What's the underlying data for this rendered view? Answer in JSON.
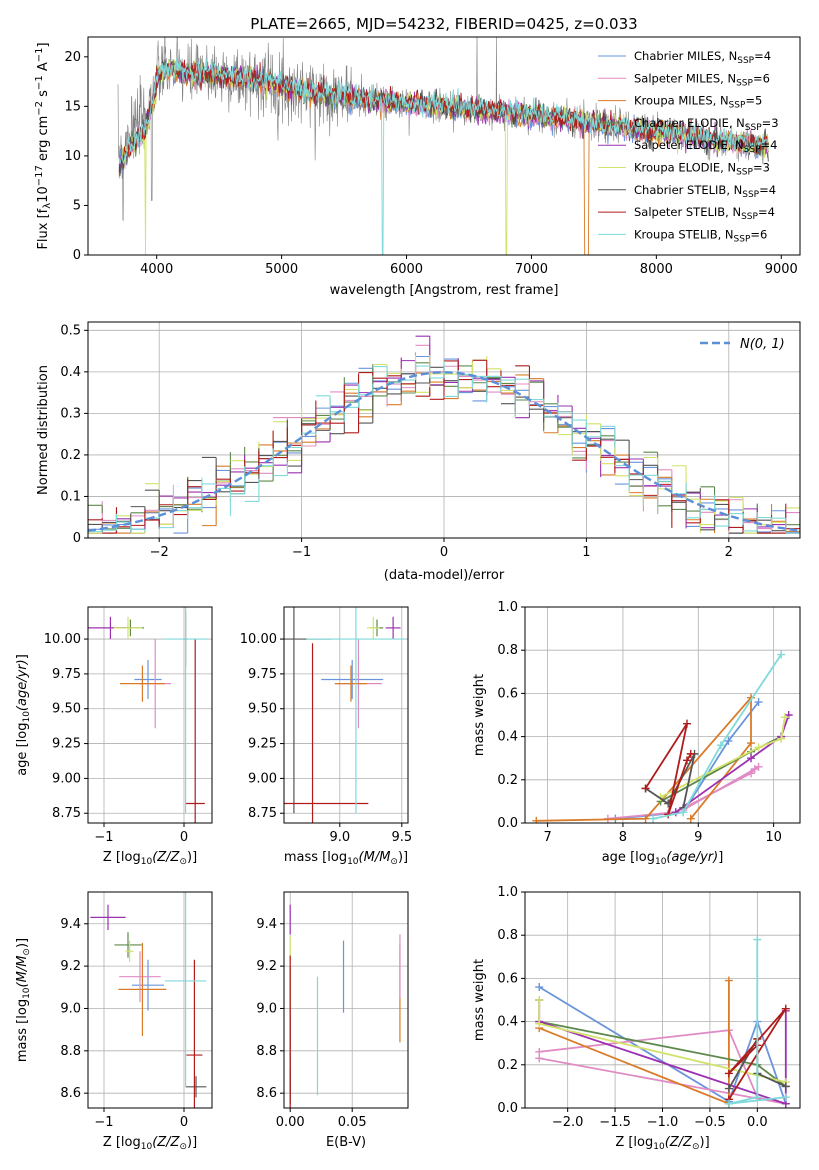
{
  "colors": {
    "Chabrier MILES": "#6a95dc",
    "Salpeter MILES": "#e08cc4",
    "Kroupa MILES": "#d97b28",
    "Chabrier ELODIE": "#5d8a4c",
    "Salpeter ELODIE": "#9b31b0",
    "Kroupa ELODIE": "#d2e26a",
    "Chabrier STELIB": "#555555",
    "Salpeter STELIB": "#b01c1c",
    "Kroupa STELIB": "#7fdad9",
    "normal": "#5b8fd8",
    "data": "#808080"
  },
  "chart_data": [
    {
      "type": "line",
      "title": "PLATE=2665, MJD=54232, FIBERID=0425, z=0.033",
      "xlabel": "wavelength [Angstrom, rest frame]",
      "ylabel": "Flux [f_λ 10^-17 erg cm^-2 s^-1 A^-1]",
      "xlim": [
        3450,
        9150
      ],
      "ylim": [
        0,
        22
      ],
      "xticks": [
        4000,
        5000,
        6000,
        7000,
        8000,
        9000
      ],
      "yticks": [
        0,
        5,
        10,
        15,
        20
      ],
      "legend_position": "top-right",
      "legend": [
        {
          "label": "Chabrier MILES, N",
          "sub": "SSP",
          "eq": "=4",
          "series": "Chabrier MILES"
        },
        {
          "label": "Salpeter MILES, N",
          "sub": "SSP",
          "eq": "=6",
          "series": "Salpeter MILES"
        },
        {
          "label": "Kroupa MILES, N",
          "sub": "SSP",
          "eq": "=5",
          "series": "Kroupa MILES"
        },
        {
          "label": "Chabrier ELODIE, N",
          "sub": "SSP",
          "eq": "=3",
          "series": "Chabrier ELODIE"
        },
        {
          "label": "Salpeter ELODIE, N",
          "sub": "SSP",
          "eq": "=4",
          "series": "Salpeter ELODIE"
        },
        {
          "label": "Kroupa ELODIE, N",
          "sub": "SSP",
          "eq": "=3",
          "series": "Kroupa ELODIE"
        },
        {
          "label": "Chabrier STELIB, N",
          "sub": "SSP",
          "eq": "=4",
          "series": "Chabrier STELIB"
        },
        {
          "label": "Salpeter STELIB, N",
          "sub": "SSP",
          "eq": "=4",
          "series": "Salpeter STELIB"
        },
        {
          "label": "Kroupa STELIB, N",
          "sub": "SSP",
          "eq": "=6",
          "series": "Kroupa STELIB"
        }
      ],
      "continuum": [
        [
          3700,
          10.5
        ],
        [
          3800,
          12.5
        ],
        [
          3900,
          14
        ],
        [
          4000,
          18
        ],
        [
          4100,
          18.8
        ],
        [
          4200,
          18.5
        ],
        [
          4300,
          18
        ],
        [
          4400,
          18.3
        ],
        [
          4500,
          18.1
        ],
        [
          4700,
          17.8
        ],
        [
          4900,
          17.5
        ],
        [
          5000,
          17
        ],
        [
          5200,
          16.5
        ],
        [
          5500,
          16
        ],
        [
          5800,
          15.5
        ],
        [
          6000,
          15.3
        ],
        [
          6300,
          15
        ],
        [
          6600,
          14.6
        ],
        [
          6900,
          14.3
        ],
        [
          7200,
          13.8
        ],
        [
          7500,
          13.3
        ],
        [
          7800,
          12.8
        ],
        [
          8000,
          12.5
        ],
        [
          8300,
          12
        ],
        [
          8500,
          11.5
        ],
        [
          8700,
          11.2
        ],
        [
          8900,
          11
        ]
      ]
    },
    {
      "type": "histogram",
      "xlabel": "(data-model)/error",
      "ylabel": "Normed distribution",
      "xlim": [
        -2.5,
        2.5
      ],
      "ylim": [
        0,
        0.52
      ],
      "xticks": [
        -2,
        -1,
        0,
        1,
        2
      ],
      "yticks": [
        0.0,
        0.1,
        0.2,
        0.3,
        0.4,
        0.5
      ],
      "legend_position": "top-right",
      "legend_label": "N(0, 1)",
      "bin_width": 0.1
    },
    {
      "type": "scatter",
      "xlabel": "Z [log10(Z/Z_sun)]",
      "ylabel": "age [log10(age/yr)]",
      "xlim": [
        -1.2,
        0.35
      ],
      "ylim": [
        8.68,
        10.23
      ],
      "xticks": [
        "-1",
        "0"
      ],
      "xtick_values": [
        -1,
        0
      ],
      "yticks": [
        "8.75",
        "9.00",
        "9.25",
        "9.50",
        "9.75",
        "10.00"
      ],
      "points": [
        {
          "series": "Chabrier MILES",
          "x": -0.45,
          "y": 9.71,
          "xerr": 0.17,
          "yerr": 0.14
        },
        {
          "series": "Salpeter MILES",
          "x": -0.36,
          "y": 9.68,
          "xerr": 0.2,
          "yerr": 0.32
        },
        {
          "series": "Kroupa MILES",
          "x": -0.52,
          "y": 9.68,
          "xerr": 0.28,
          "yerr": 0.13
        },
        {
          "series": "Chabrier ELODIE",
          "x": -0.67,
          "y": 10.08,
          "xerr": 0.17,
          "yerr": 0.06
        },
        {
          "series": "Salpeter ELODIE",
          "x": -0.92,
          "y": 10.08,
          "xerr": 0.28,
          "yerr": 0.08
        },
        {
          "series": "Kroupa ELODIE",
          "x": -0.7,
          "y": 10.08,
          "xerr": 0.18,
          "yerr": 0.08
        },
        {
          "series": "Chabrier STELIB",
          "x": 0.02,
          "y": 10.0,
          "xerr": 0.02,
          "yerr": 0.2
        },
        {
          "series": "Salpeter STELIB",
          "x": 0.14,
          "y": 8.82,
          "xerr": 0.12,
          "yerr": 1.18
        },
        {
          "series": "Kroupa STELIB",
          "x": 0.02,
          "y": 10.0,
          "xerr": 0.28,
          "yerr": 1.25
        }
      ]
    },
    {
      "type": "scatter",
      "xlabel": "mass [log10(M/M_sun)]",
      "ylabel": "",
      "xlim": [
        8.55,
        9.55
      ],
      "ylim": [
        8.68,
        10.23
      ],
      "xticks": [
        "9.0",
        "9.5"
      ],
      "xtick_values": [
        9.0,
        9.5
      ],
      "yticks": [
        "8.75",
        "9.00",
        "9.25",
        "9.50",
        "9.75",
        "10.00"
      ],
      "points": [
        {
          "series": "Chabrier MILES",
          "x": 9.1,
          "y": 9.71,
          "xerr": 0.25,
          "yerr": 0.14
        },
        {
          "series": "Salpeter MILES",
          "x": 9.15,
          "y": 9.68,
          "xerr": 0.19,
          "yerr": 0.32
        },
        {
          "series": "Kroupa MILES",
          "x": 9.09,
          "y": 9.68,
          "xerr": 0.13,
          "yerr": 0.13
        },
        {
          "series": "Chabrier ELODIE",
          "x": 9.3,
          "y": 10.08,
          "xerr": 0.05,
          "yerr": 0.06
        },
        {
          "series": "Salpeter ELODIE",
          "x": 9.43,
          "y": 10.08,
          "xerr": 0.06,
          "yerr": 0.08
        },
        {
          "series": "Kroupa ELODIE",
          "x": 9.27,
          "y": 10.08,
          "xerr": 0.05,
          "yerr": 0.08
        },
        {
          "series": "Chabrier STELIB",
          "x": 8.63,
          "y": 10.0,
          "xerr": 0.3,
          "yerr": 1.25
        },
        {
          "series": "Salpeter STELIB",
          "x": 8.78,
          "y": 8.82,
          "xerr": 0.45,
          "yerr": 1.15
        },
        {
          "series": "Kroupa STELIB",
          "x": 9.13,
          "y": 10.0,
          "xerr": 0.4,
          "yerr": 1.25
        }
      ]
    },
    {
      "type": "line",
      "xlabel": "age [log10(age/yr)]",
      "ylabel": "mass weight",
      "xlim": [
        6.7,
        10.35
      ],
      "ylim": [
        0,
        1.0
      ],
      "xticks": [
        "7",
        "8",
        "9",
        "10"
      ],
      "xtick_values": [
        7,
        8,
        9,
        10
      ],
      "yticks": [
        "0.0",
        "0.2",
        "0.4",
        "0.6",
        "0.8",
        "1.0"
      ],
      "series": [
        {
          "name": "Chabrier MILES",
          "points": [
            [
              7.9,
              0.02
            ],
            [
              8.8,
              0.05
            ],
            [
              9.4,
              0.38
            ],
            [
              9.8,
              0.56
            ]
          ]
        },
        {
          "name": "Salpeter MILES",
          "points": [
            [
              7.8,
              0.02
            ],
            [
              8.7,
              0.05
            ],
            [
              9.7,
              0.23
            ],
            [
              9.75,
              0.25
            ],
            [
              9.8,
              0.26
            ],
            [
              8.8,
              0.06
            ]
          ]
        },
        {
          "name": "Kroupa MILES",
          "points": [
            [
              6.85,
              0.01
            ],
            [
              8.3,
              0.02
            ],
            [
              9.7,
              0.58
            ],
            [
              9.7,
              0.37
            ],
            [
              8.9,
              0.02
            ]
          ]
        },
        {
          "name": "Chabrier ELODIE",
          "points": [
            [
              8.5,
              0.1
            ],
            [
              9.7,
              0.33
            ],
            [
              10.1,
              0.4
            ]
          ]
        },
        {
          "name": "Salpeter ELODIE",
          "points": [
            [
              8.7,
              0.05
            ],
            [
              9.7,
              0.3
            ],
            [
              10.1,
              0.4
            ],
            [
              10.2,
              0.5
            ]
          ]
        },
        {
          "name": "Kroupa ELODIE",
          "points": [
            [
              8.5,
              0.12
            ],
            [
              9.8,
              0.35
            ],
            [
              10.1,
              0.39
            ],
            [
              10.15,
              0.49
            ]
          ]
        },
        {
          "name": "Chabrier STELIB",
          "points": [
            [
              8.3,
              0.16
            ],
            [
              8.6,
              0.09
            ],
            [
              8.95,
              0.32
            ],
            [
              8.8,
              0.07
            ]
          ]
        },
        {
          "name": "Salpeter STELIB",
          "points": [
            [
              8.3,
              0.16
            ],
            [
              8.85,
              0.46
            ],
            [
              8.6,
              0.04
            ],
            [
              8.85,
              0.29
            ],
            [
              8.9,
              0.32
            ]
          ]
        },
        {
          "name": "Kroupa STELIB",
          "points": [
            [
              8.4,
              0.02
            ],
            [
              8.8,
              0.05
            ],
            [
              9.3,
              0.36
            ],
            [
              10.1,
              0.78
            ]
          ]
        }
      ]
    },
    {
      "type": "scatter",
      "xlabel": "Z [log10(Z/Z_sun)]",
      "ylabel": "mass [log10(M/M_sun)]",
      "xlim": [
        -1.2,
        0.35
      ],
      "ylim": [
        8.53,
        9.55
      ],
      "xticks": [
        "-1",
        "0"
      ],
      "xtick_values": [
        -1,
        0
      ],
      "yticks": [
        "8.6",
        "8.8",
        "9.0",
        "9.2",
        "9.4"
      ],
      "points": [
        {
          "series": "Chabrier MILES",
          "x": -0.45,
          "y": 9.11,
          "xerr": 0.2,
          "yerr": 0.12
        },
        {
          "series": "Salpeter MILES",
          "x": -0.55,
          "y": 9.15,
          "xerr": 0.26,
          "yerr": 0.12
        },
        {
          "series": "Kroupa MILES",
          "x": -0.52,
          "y": 9.09,
          "xerr": 0.3,
          "yerr": 0.22
        },
        {
          "series": "Chabrier ELODIE",
          "x": -0.7,
          "y": 9.3,
          "xerr": 0.17,
          "yerr": 0.06
        },
        {
          "series": "Salpeter ELODIE",
          "x": -0.95,
          "y": 9.43,
          "xerr": 0.22,
          "yerr": 0.06
        },
        {
          "series": "Kroupa ELODIE",
          "x": -0.68,
          "y": 9.27,
          "xerr": 0.05,
          "yerr": 0.05
        },
        {
          "series": "Chabrier STELIB",
          "x": 0.15,
          "y": 8.63,
          "xerr": 0.13,
          "yerr": 0.05
        },
        {
          "series": "Salpeter STELIB",
          "x": 0.13,
          "y": 8.78,
          "xerr": 0.1,
          "yerr": 0.45
        },
        {
          "series": "Kroupa STELIB",
          "x": 0.02,
          "y": 9.13,
          "xerr": 0.26,
          "yerr": 0.5
        }
      ]
    },
    {
      "type": "scatter",
      "xlabel": "E(B-V)",
      "ylabel": "",
      "xlim": [
        -0.005,
        0.095
      ],
      "ylim": [
        8.53,
        9.55
      ],
      "xticks": [
        "0.00",
        "0.05"
      ],
      "xtick_values": [
        0.0,
        0.05
      ],
      "yticks": [
        "8.6",
        "8.8",
        "9.0",
        "9.2",
        "9.4"
      ],
      "points": [
        {
          "series": "Chabrier MILES",
          "x": 0.043,
          "y": 9.15,
          "yerr": 0.17
        },
        {
          "series": "Salpeter MILES",
          "x": 0.0,
          "y": 8.8,
          "yerr": 0.2
        },
        {
          "series": "Kroupa MILES",
          "x": 0.0885,
          "y": 9.07,
          "yerr": 0.23
        },
        {
          "series": "Chabrier ELODIE",
          "x": 0.0,
          "y": 8.9,
          "yerr": 0.3
        },
        {
          "series": "Salpeter ELODIE",
          "x": 0.0,
          "y": 9.42,
          "yerr": 0.07
        },
        {
          "series": "Kroupa ELODIE",
          "x": 0.0,
          "y": 9.28,
          "yerr": 0.06
        },
        {
          "series": "Chabrier STELIB",
          "x": 0.0,
          "y": 8.63,
          "yerr": 0.08
        },
        {
          "series": "Salpeter STELIB",
          "x": 0.0,
          "y": 8.85,
          "yerr": 0.4
        },
        {
          "series": "Kroupa STELIB",
          "x": 0.022,
          "y": 8.87,
          "yerr": 0.28
        },
        {
          "series": "Salpeter MILES",
          "x": 0.0885,
          "y": 9.2,
          "yerr": 0.15
        }
      ]
    },
    {
      "type": "line",
      "xlabel": "Z [log10(Z/Z_sun)]",
      "ylabel": "mass weight",
      "xlim": [
        -2.45,
        0.45
      ],
      "ylim": [
        0,
        1.0
      ],
      "xticks": [
        "-2.0",
        "-1.5",
        "-1.0",
        "-0.5",
        "0.0"
      ],
      "xtick_values": [
        -2.0,
        -1.5,
        -1.0,
        -0.5,
        0.0
      ],
      "yticks": [
        "0.0",
        "0.2",
        "0.4",
        "0.6",
        "0.8",
        "1.0"
      ],
      "series": [
        {
          "name": "Chabrier MILES",
          "points": [
            [
              -2.3,
              0.56
            ],
            [
              -0.3,
              0.03
            ],
            [
              0.0,
              0.4
            ],
            [
              0.3,
              0.02
            ]
          ]
        },
        {
          "name": "Salpeter MILES",
          "points": [
            [
              -2.3,
              0.26
            ],
            [
              -0.3,
              0.36
            ],
            [
              0.0,
              0.05
            ],
            [
              0.3,
              0.02
            ],
            [
              -2.3,
              0.23
            ]
          ]
        },
        {
          "name": "Kroupa MILES",
          "points": [
            [
              -2.3,
              0.37
            ],
            [
              -0.3,
              0.02
            ],
            [
              -0.3,
              0.59
            ],
            [
              -0.3,
              0.02
            ]
          ]
        },
        {
          "name": "Chabrier ELODIE",
          "points": [
            [
              -2.3,
              0.4
            ],
            [
              0.0,
              0.2
            ],
            [
              0.3,
              0.1
            ]
          ]
        },
        {
          "name": "Salpeter ELODIE",
          "points": [
            [
              -2.3,
              0.5
            ],
            [
              -2.3,
              0.4
            ],
            [
              0.3,
              0.02
            ],
            [
              0.3,
              0.45
            ]
          ]
        },
        {
          "name": "Kroupa ELODIE",
          "points": [
            [
              -2.3,
              0.5
            ],
            [
              -2.3,
              0.39
            ],
            [
              0.3,
              0.12
            ]
          ]
        },
        {
          "name": "Chabrier STELIB",
          "points": [
            [
              -0.3,
              0.09
            ],
            [
              0.0,
              0.32
            ],
            [
              0.0,
              0.16
            ],
            [
              0.3,
              0.1
            ]
          ]
        },
        {
          "name": "Salpeter STELIB",
          "points": [
            [
              -0.3,
              0.04
            ],
            [
              0.3,
              0.46
            ],
            [
              -0.3,
              0.16
            ],
            [
              0.0,
              0.29
            ],
            [
              0.0,
              0.32
            ]
          ]
        },
        {
          "name": "Kroupa STELIB",
          "points": [
            [
              0.0,
              0.78
            ],
            [
              0.0,
              0.05
            ],
            [
              -0.3,
              0.02
            ],
            [
              0.3,
              0.05
            ]
          ]
        }
      ]
    }
  ]
}
